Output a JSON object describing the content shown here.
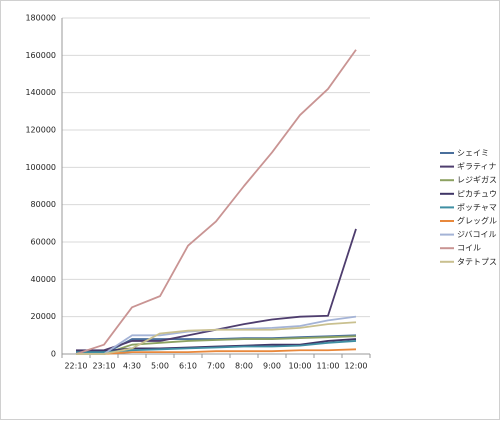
{
  "chart_data": {
    "type": "line",
    "categories": [
      "22:10",
      "23:10",
      "4:30",
      "5:00",
      "6:10",
      "7:00",
      "8:00",
      "9:00",
      "10:00",
      "11:00",
      "12:00"
    ],
    "ylim": [
      0,
      180000
    ],
    "yticks": [
      0,
      20000,
      40000,
      60000,
      80000,
      100000,
      120000,
      140000,
      160000,
      180000
    ],
    "grid": true,
    "legend": "right",
    "series": [
      {
        "name": "シェイミ",
        "color": "#4a6f9c",
        "values": [
          0,
          0,
          8000,
          8000,
          8000,
          8000,
          8500,
          8500,
          9000,
          9500,
          10000
        ]
      },
      {
        "name": "ギラティナ",
        "color": "#4e3d6e",
        "values": [
          2000,
          2000,
          7000,
          7000,
          10000,
          13000,
          16000,
          18500,
          20000,
          20500,
          67000
        ]
      },
      {
        "name": "レジギガス",
        "color": "#8da262",
        "values": [
          0,
          0,
          5000,
          6000,
          7000,
          7500,
          8000,
          8000,
          8500,
          9000,
          9500
        ]
      },
      {
        "name": "ピカチュウ",
        "color": "#3f3566",
        "values": [
          1500,
          1500,
          3000,
          3000,
          3500,
          4000,
          4500,
          5000,
          5000,
          7000,
          8000
        ]
      },
      {
        "name": "ポッチャマ",
        "color": "#3f8fa3",
        "values": [
          1000,
          1000,
          2000,
          2500,
          3000,
          3500,
          4000,
          4000,
          4500,
          6000,
          7000
        ]
      },
      {
        "name": "グレッグル",
        "color": "#e8883c",
        "values": [
          0,
          0,
          1000,
          1000,
          1000,
          1500,
          1500,
          1500,
          2000,
          2000,
          2500
        ]
      },
      {
        "name": "ジバコイル",
        "color": "#a4b3d6",
        "values": [
          0,
          0,
          10000,
          10000,
          12000,
          13000,
          13500,
          14000,
          15000,
          18000,
          20000
        ]
      },
      {
        "name": "コイル",
        "color": "#c99493",
        "values": [
          0,
          5000,
          25000,
          31000,
          58000,
          71000,
          90000,
          108000,
          128000,
          142000,
          163000
        ]
      },
      {
        "name": "タテトプス",
        "color": "#c9c08f",
        "values": [
          0,
          0,
          3000,
          11000,
          12500,
          13000,
          13000,
          13000,
          14000,
          16000,
          17000
        ]
      }
    ]
  }
}
